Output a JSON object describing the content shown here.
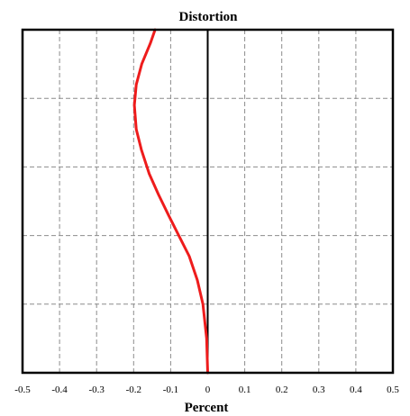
{
  "chart_data": {
    "type": "line",
    "title": "Distortion",
    "xlabel": "Percent",
    "ylabel": "",
    "xlim": [
      -0.5,
      0.5
    ],
    "ylim": [
      0,
      1
    ],
    "xticks": [
      -0.5,
      -0.4,
      -0.3,
      -0.2,
      -0.1,
      0,
      0.1,
      0.2,
      0.3,
      0.4,
      0.5
    ],
    "xtick_labels": [
      "-0.5",
      "-0.4",
      "-0.3",
      "-0.2",
      "-0.1",
      "0",
      "0.1",
      "0.2",
      "0.3",
      "0.4",
      "0.5"
    ],
    "y_gridlines": [
      0.2,
      0.4,
      0.6,
      0.8
    ],
    "grid": true,
    "legend": "none",
    "series": [
      {
        "color": "#ee1c1c",
        "x": [
          0.0,
          -0.003,
          -0.013,
          -0.028,
          -0.05,
          -0.078,
          -0.106,
          -0.133,
          -0.158,
          -0.179,
          -0.193,
          -0.198,
          -0.193,
          -0.178,
          -0.155,
          -0.142
        ],
        "y": [
          0.0,
          0.1,
          0.2,
          0.27,
          0.34,
          0.4,
          0.46,
          0.52,
          0.58,
          0.65,
          0.71,
          0.78,
          0.84,
          0.9,
          0.96,
          1.0
        ]
      }
    ],
    "colors": {
      "frame": "#000000",
      "zero_line": "#000000",
      "grid": "#8c8c8c",
      "curve": "#ee1c1c"
    }
  }
}
